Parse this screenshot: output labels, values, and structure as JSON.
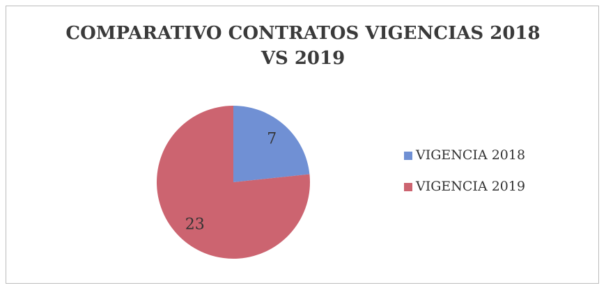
{
  "chart_data": {
    "type": "pie",
    "title": "COMPARATIVO CONTRATOS VIGENCIAS 2018 VS 2019",
    "categories": [
      "VIGENCIA 2018",
      "VIGENCIA 2019"
    ],
    "values": [
      7,
      23
    ],
    "colors": [
      "#7090d4",
      "#cc6470"
    ]
  }
}
